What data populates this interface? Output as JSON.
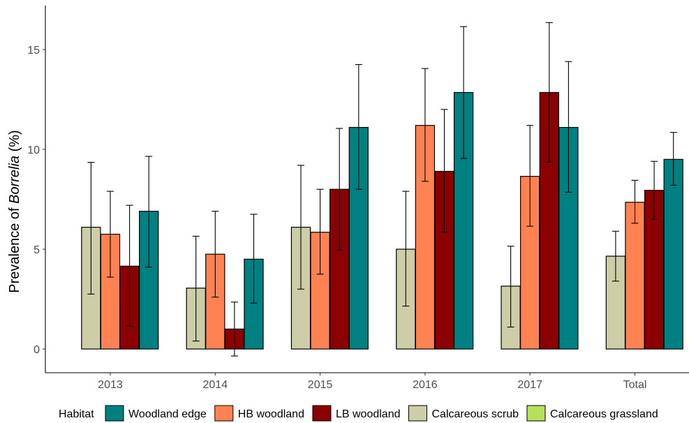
{
  "chart_data": {
    "type": "bar",
    "ylabel_parts": [
      "Prevalence of ",
      "Borrelia",
      " (%)"
    ],
    "xlabel": "",
    "categories": [
      "2013",
      "2014",
      "2015",
      "2016",
      "2017",
      "Total"
    ],
    "ylim": [
      -1.2,
      17.0
    ],
    "yticks": [
      0,
      5,
      10,
      15
    ],
    "grid": false,
    "legend_position": "bottom",
    "legend_title": "Habitat",
    "legend": [
      {
        "name": "Woodland edge",
        "color": "#008080"
      },
      {
        "name": "HB woodland",
        "color": "#ff8352"
      },
      {
        "name": "LB woodland",
        "color": "#8b0000"
      },
      {
        "name": "Calcareous scrub",
        "color": "#cdcda8"
      },
      {
        "name": "Calcareous grassland",
        "color": "#b8e05a"
      }
    ],
    "series_order": [
      "Calcareous grassland",
      "Calcareous scrub",
      "HB woodland",
      "LB woodland",
      "Woodland edge"
    ],
    "series": [
      {
        "name": "Calcareous grassland",
        "color": "#b8e05a",
        "values": [
          0,
          0,
          0,
          0,
          0,
          0
        ],
        "err_low": [
          0,
          0,
          0,
          0,
          0,
          0
        ],
        "err_high": [
          0,
          0,
          0,
          0,
          0,
          0
        ]
      },
      {
        "name": "Calcareous scrub",
        "color": "#cdcda8",
        "values": [
          6.1,
          3.05,
          6.1,
          5.0,
          3.15,
          4.65
        ],
        "err_low": [
          2.75,
          0.4,
          3.0,
          2.15,
          1.1,
          3.4
        ],
        "err_high": [
          9.35,
          5.65,
          9.2,
          7.9,
          5.15,
          5.9
        ]
      },
      {
        "name": "HB woodland",
        "color": "#ff8352",
        "values": [
          5.75,
          4.75,
          5.85,
          11.2,
          8.65,
          7.35
        ],
        "err_low": [
          3.6,
          2.6,
          3.75,
          8.4,
          6.15,
          6.3
        ],
        "err_high": [
          7.9,
          6.9,
          8.0,
          14.05,
          11.2,
          8.45
        ]
      },
      {
        "name": "LB woodland",
        "color": "#8b0000",
        "values": [
          4.15,
          1.0,
          8.0,
          8.9,
          12.85,
          7.95
        ],
        "err_low": [
          1.15,
          -0.35,
          4.95,
          5.85,
          9.35,
          6.5
        ],
        "err_high": [
          7.2,
          2.35,
          11.05,
          12.0,
          16.35,
          9.4
        ]
      },
      {
        "name": "Woodland edge",
        "color": "#008080",
        "values": [
          6.9,
          4.5,
          11.1,
          12.85,
          11.1,
          9.5
        ],
        "err_low": [
          4.1,
          2.3,
          8.0,
          9.55,
          7.85,
          8.2
        ],
        "err_high": [
          9.65,
          6.75,
          14.25,
          16.15,
          14.4,
          10.85
        ]
      }
    ]
  }
}
